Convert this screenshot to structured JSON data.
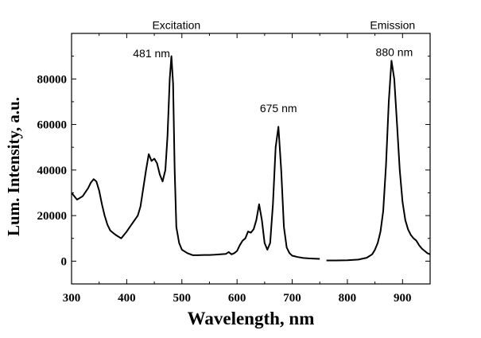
{
  "chart_data": {
    "type": "line",
    "title": "",
    "xlabel": "Wavelength, nm",
    "ylabel": "Lum. Intensity, a.u.",
    "xlim": [
      300,
      950
    ],
    "ylim": [
      -10000,
      100000
    ],
    "xticks": [
      300,
      400,
      500,
      600,
      700,
      800,
      900
    ],
    "yticks": [
      0,
      20000,
      40000,
      60000,
      80000
    ],
    "grid": false,
    "series": [
      {
        "name": "Excitation",
        "x": [
          300,
          310,
          320,
          330,
          335,
          340,
          345,
          350,
          355,
          360,
          365,
          370,
          375,
          380,
          390,
          400,
          410,
          420,
          425,
          430,
          435,
          440,
          445,
          450,
          455,
          460,
          465,
          470,
          474,
          478,
          481,
          484,
          487,
          490,
          495,
          500,
          510,
          520,
          530,
          540,
          550,
          560,
          570,
          580,
          585,
          590,
          595,
          600,
          605,
          610,
          615,
          620,
          625,
          630,
          635,
          640,
          645,
          650,
          655,
          660,
          665,
          670,
          675,
          680,
          685,
          690,
          695,
          700,
          710,
          720,
          730,
          740,
          750
        ],
        "values": [
          30000,
          27000,
          28500,
          32000,
          34500,
          36000,
          35000,
          31000,
          25000,
          20000,
          16000,
          13500,
          12500,
          11500,
          10000,
          13000,
          16500,
          20000,
          24000,
          32000,
          40000,
          47000,
          44000,
          45000,
          43000,
          38000,
          35000,
          40000,
          55000,
          80000,
          90000,
          78000,
          40000,
          15000,
          8000,
          5000,
          3500,
          2600,
          2600,
          2700,
          2700,
          2800,
          3000,
          3200,
          4000,
          3000,
          3500,
          4500,
          7000,
          9000,
          10000,
          13000,
          12500,
          14000,
          18000,
          25000,
          18000,
          8000,
          5000,
          8000,
          25000,
          50000,
          59000,
          40000,
          15000,
          6000,
          3500,
          2400,
          1800,
          1400,
          1200,
          1100,
          1000
        ]
      },
      {
        "name": "Emission",
        "x": [
          762,
          780,
          800,
          820,
          835,
          845,
          850,
          855,
          860,
          865,
          870,
          875,
          880,
          885,
          890,
          895,
          900,
          905,
          910,
          915,
          920,
          925,
          930,
          935,
          940,
          945,
          950
        ],
        "values": [
          300,
          300,
          400,
          700,
          1500,
          3000,
          5000,
          8000,
          13000,
          22000,
          42000,
          70000,
          88000,
          80000,
          60000,
          40000,
          26000,
          18000,
          14000,
          11500,
          10000,
          9000,
          7000,
          5500,
          4500,
          3500,
          3000
        ]
      }
    ],
    "annotations": [
      {
        "text": "Excitation",
        "x": 490,
        "y": 102000
      },
      {
        "text": "Emission",
        "x": 882,
        "y": 102000
      },
      {
        "text": "481 nm",
        "x": 445,
        "y": 89500
      },
      {
        "text": "675 nm",
        "x": 675,
        "y": 65500
      },
      {
        "text": "880 nm",
        "x": 885,
        "y": 90000
      }
    ]
  }
}
